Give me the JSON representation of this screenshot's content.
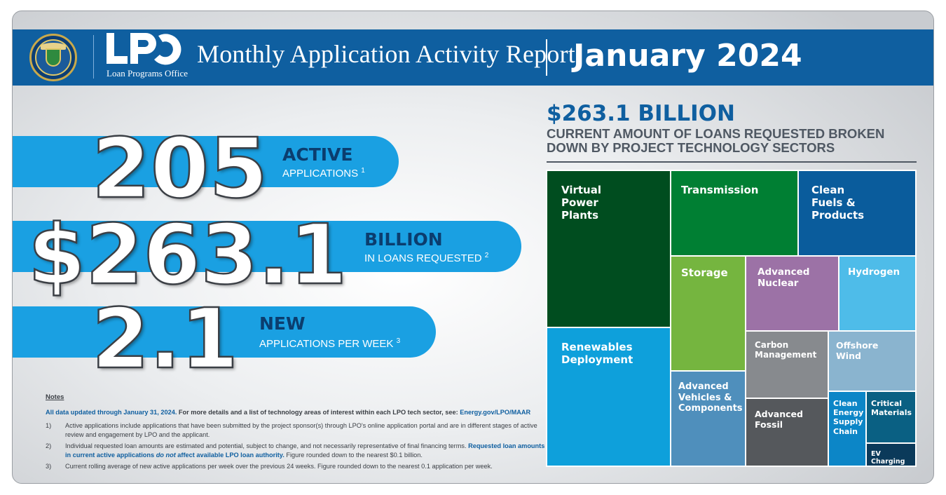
{
  "header": {
    "logo_text": "LPO",
    "logo_subtitle": "Loan Programs Office",
    "title": "Monthly Application Activity Report",
    "date": "January 2024",
    "colors": {
      "banner": "#0f5fa0",
      "accent": "#1aa0e2"
    }
  },
  "stats": [
    {
      "number": "205",
      "headline": "ACTIVE",
      "sub": "APPLICATIONS",
      "note": "1"
    },
    {
      "number": "$263.1",
      "headline": "BILLION",
      "sub": "IN LOANS REQUESTED",
      "note": "2"
    },
    {
      "number": "2.1",
      "headline": "NEW",
      "sub": "APPLICATIONS PER WEEK",
      "note": "3"
    }
  ],
  "notes": {
    "heading": "Notes",
    "intro": "All data updated through January 31, 2024.",
    "intro_plain": " For more details and a list of technology areas of interest within each LPO tech sector, see: ",
    "intro_link": "Energy.gov/LPO/MAAR",
    "items": [
      {
        "num": "1)",
        "text": "Active applications include applications that have been submitted by the project sponsor(s) through LPO's online application portal and are in different stages of active review and engagement by LPO and the applicant."
      },
      {
        "num": "2)",
        "text_a": "Individual requested loan amounts are estimated and potential, subject to change, and not necessarily representative of final financing terms. ",
        "hl_a": "Requested loan amounts in current active applications ",
        "hl_i": "do not",
        "hl_b": " affect available LPO loan authority.",
        "text_b": " Figure rounded down to the nearest $0.1 billion."
      },
      {
        "num": "3)",
        "text": "Current rolling average of new active applications per week over the previous 24 weeks. Figure rounded down to the nearest 0.1 application per week."
      }
    ]
  },
  "chart_data": {
    "type": "treemap",
    "title": "$263.1 BILLION",
    "subtitle": "CURRENT AMOUNT OF LOANS REQUESTED BROKEN DOWN BY PROJECT TECHNOLOGY SECTORS",
    "total_billion": 263.1,
    "sectors": [
      {
        "name": "Virtual Power Plants",
        "label": "Virtual\nPower\nPlants",
        "color": "#004d1f"
      },
      {
        "name": "Renewables Deployment",
        "label": "Renewables\nDeployment",
        "color": "#0ea0db"
      },
      {
        "name": "Transmission",
        "label": "Transmission",
        "color": "#007f33"
      },
      {
        "name": "Clean Fuels & Products",
        "label": "Clean\nFuels &\nProducts",
        "color": "#0a5c9c"
      },
      {
        "name": "Storage",
        "label": "Storage",
        "color": "#75b53f"
      },
      {
        "name": "Advanced Vehicles & Components",
        "label": "Advanced\nVehicles &\nComponents",
        "color": "#4f8fbc"
      },
      {
        "name": "Advanced Nuclear",
        "label": "Advanced\nNuclear",
        "color": "#9c72a6"
      },
      {
        "name": "Hydrogen",
        "label": "Hydrogen",
        "color": "#4ebce9"
      },
      {
        "name": "Carbon Management",
        "label": "Carbon\nManagement",
        "color": "#878a8e"
      },
      {
        "name": "Offshore Wind",
        "label": "Offshore\nWind",
        "color": "#8ab4cf"
      },
      {
        "name": "Advanced Fossil",
        "label": "Advanced\nFossil",
        "color": "#55585c"
      },
      {
        "name": "Clean Energy Supply Chain",
        "label": "Clean\nEnergy\nSupply\nChain",
        "color": "#0c86c7"
      },
      {
        "name": "Critical Materials",
        "label": "Critical\nMaterials",
        "color": "#0a6083"
      },
      {
        "name": "EV Charging",
        "label": "EV Charging",
        "color": "#0b3a5a"
      }
    ]
  }
}
